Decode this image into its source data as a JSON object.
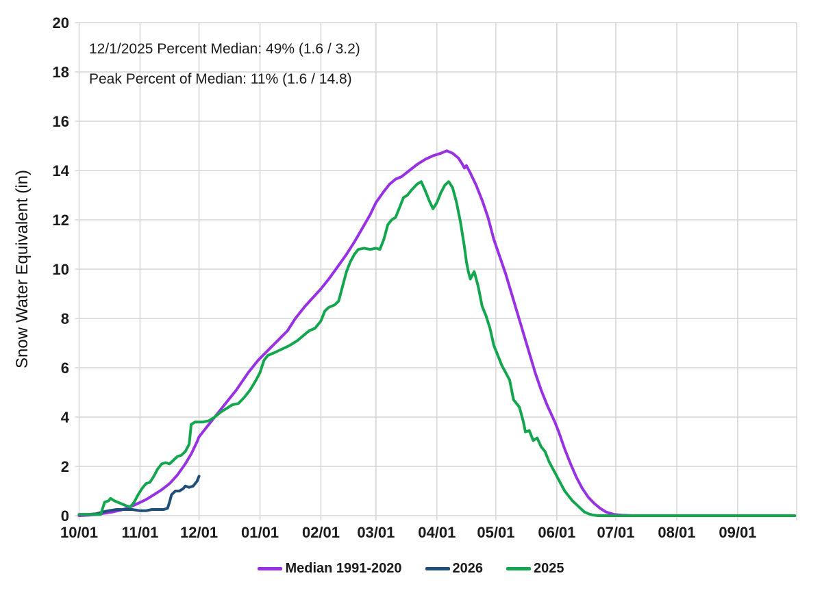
{
  "annotations": {
    "line1": "12/1/2025 Percent Median: 49% (1.6 / 3.2)",
    "line2": "Peak Percent of Median: 11% (1.6 / 14.8)"
  },
  "colors": {
    "median_line": "#9831E3",
    "line_2026": "#1F4E79",
    "line_2025": "#14A64E",
    "gridline": "#D5D5D5",
    "axis_text": "#1A1A1A",
    "background": "#FFFFFF"
  },
  "chart_data": {
    "type": "line",
    "title": "",
    "xlabel": "",
    "ylabel": "Snow Water Equivalent (in)",
    "ylim": [
      0,
      20
    ],
    "y_ticks": [
      0,
      2,
      4,
      6,
      8,
      10,
      12,
      14,
      16,
      18,
      20
    ],
    "x_ticks": [
      "10/01",
      "11/01",
      "12/01",
      "01/01",
      "02/01",
      "03/01",
      "04/01",
      "05/01",
      "06/01",
      "07/01",
      "08/01",
      "09/01"
    ],
    "grid": true,
    "legend_position": "bottom",
    "series": [
      {
        "name": "Median 1991-2020",
        "color": "#9831E3",
        "points": [
          [
            "10/01",
            0
          ],
          [
            "10/06",
            0.02
          ],
          [
            "10/10",
            0.05
          ],
          [
            "10/14",
            0.1
          ],
          [
            "10/18",
            0.15
          ],
          [
            "10/22",
            0.22
          ],
          [
            "10/26",
            0.32
          ],
          [
            "10/31",
            0.5
          ],
          [
            "11/04",
            0.65
          ],
          [
            "11/08",
            0.85
          ],
          [
            "11/12",
            1.05
          ],
          [
            "11/16",
            1.3
          ],
          [
            "11/20",
            1.65
          ],
          [
            "11/24",
            2.1
          ],
          [
            "11/27",
            2.5
          ],
          [
            "11/30",
            3.0
          ],
          [
            "12/01",
            3.2
          ],
          [
            "12/05",
            3.6
          ],
          [
            "12/10",
            4.1
          ],
          [
            "12/15",
            4.6
          ],
          [
            "12/20",
            5.1
          ],
          [
            "12/26",
            5.8
          ],
          [
            "12/31",
            6.3
          ],
          [
            "01/05",
            6.7
          ],
          [
            "01/10",
            7.1
          ],
          [
            "01/15",
            7.5
          ],
          [
            "01/19",
            8.0
          ],
          [
            "01/24",
            8.5
          ],
          [
            "01/28",
            8.85
          ],
          [
            "02/01",
            9.2
          ],
          [
            "02/05",
            9.6
          ],
          [
            "02/10",
            10.15
          ],
          [
            "02/14",
            10.6
          ],
          [
            "02/18",
            11.1
          ],
          [
            "02/22",
            11.65
          ],
          [
            "02/26",
            12.2
          ],
          [
            "03/01",
            12.7
          ],
          [
            "03/05",
            13.15
          ],
          [
            "03/08",
            13.45
          ],
          [
            "03/11",
            13.65
          ],
          [
            "03/14",
            13.75
          ],
          [
            "03/18",
            14.0
          ],
          [
            "03/22",
            14.25
          ],
          [
            "03/26",
            14.45
          ],
          [
            "03/30",
            14.6
          ],
          [
            "04/03",
            14.7
          ],
          [
            "04/06",
            14.8
          ],
          [
            "04/09",
            14.7
          ],
          [
            "04/12",
            14.5
          ],
          [
            "04/14",
            14.25
          ],
          [
            "04/15",
            14.1
          ],
          [
            "04/16",
            14.2
          ],
          [
            "04/18",
            13.9
          ],
          [
            "04/21",
            13.4
          ],
          [
            "04/24",
            12.8
          ],
          [
            "04/27",
            12.1
          ],
          [
            "04/30",
            11.2
          ],
          [
            "05/03",
            10.5
          ],
          [
            "05/06",
            9.8
          ],
          [
            "05/09",
            9.0
          ],
          [
            "05/12",
            8.2
          ],
          [
            "05/15",
            7.4
          ],
          [
            "05/18",
            6.6
          ],
          [
            "05/21",
            5.8
          ],
          [
            "05/24",
            5.1
          ],
          [
            "05/27",
            4.5
          ],
          [
            "05/31",
            3.8
          ],
          [
            "06/02",
            3.4
          ],
          [
            "06/05",
            2.7
          ],
          [
            "06/08",
            2.1
          ],
          [
            "06/11",
            1.55
          ],
          [
            "06/14",
            1.1
          ],
          [
            "06/17",
            0.75
          ],
          [
            "06/20",
            0.5
          ],
          [
            "06/23",
            0.3
          ],
          [
            "06/26",
            0.15
          ],
          [
            "06/30",
            0.05
          ],
          [
            "07/04",
            0.02
          ],
          [
            "07/10",
            0
          ],
          [
            "08/01",
            0
          ],
          [
            "09/01",
            0
          ],
          [
            "09/30",
            0
          ]
        ]
      },
      {
        "name": "2026",
        "color": "#1F4E79",
        "points": [
          [
            "10/01",
            0.05
          ],
          [
            "10/06",
            0.05
          ],
          [
            "10/10",
            0.08
          ],
          [
            "10/13",
            0.15
          ],
          [
            "10/16",
            0.2
          ],
          [
            "10/20",
            0.25
          ],
          [
            "10/24",
            0.25
          ],
          [
            "10/28",
            0.25
          ],
          [
            "11/01",
            0.2
          ],
          [
            "11/04",
            0.2
          ],
          [
            "11/07",
            0.25
          ],
          [
            "11/10",
            0.25
          ],
          [
            "11/13",
            0.25
          ],
          [
            "11/15",
            0.3
          ],
          [
            "11/16",
            0.55
          ],
          [
            "11/17",
            0.85
          ],
          [
            "11/19",
            1.0
          ],
          [
            "11/21",
            1.0
          ],
          [
            "11/23",
            1.1
          ],
          [
            "11/24",
            1.2
          ],
          [
            "11/26",
            1.15
          ],
          [
            "11/28",
            1.2
          ],
          [
            "11/30",
            1.4
          ],
          [
            "12/01",
            1.6
          ]
        ]
      },
      {
        "name": "2025",
        "color": "#14A64E",
        "points": [
          [
            "10/01",
            0.05
          ],
          [
            "10/08",
            0.05
          ],
          [
            "10/12",
            0.05
          ],
          [
            "10/13",
            0.3
          ],
          [
            "10/14",
            0.55
          ],
          [
            "10/16",
            0.6
          ],
          [
            "10/17",
            0.7
          ],
          [
            "10/19",
            0.6
          ],
          [
            "10/22",
            0.5
          ],
          [
            "10/25",
            0.4
          ],
          [
            "10/27",
            0.35
          ],
          [
            "10/29",
            0.55
          ],
          [
            "10/31",
            0.85
          ],
          [
            "11/02",
            1.1
          ],
          [
            "11/04",
            1.3
          ],
          [
            "11/06",
            1.35
          ],
          [
            "11/08",
            1.6
          ],
          [
            "11/10",
            1.9
          ],
          [
            "11/12",
            2.1
          ],
          [
            "11/14",
            2.15
          ],
          [
            "11/16",
            2.1
          ],
          [
            "11/18",
            2.25
          ],
          [
            "11/20",
            2.4
          ],
          [
            "11/22",
            2.45
          ],
          [
            "11/24",
            2.6
          ],
          [
            "11/26",
            2.9
          ],
          [
            "11/27",
            3.7
          ],
          [
            "11/29",
            3.8
          ],
          [
            "12/03",
            3.8
          ],
          [
            "12/06",
            3.85
          ],
          [
            "12/09",
            4.0
          ],
          [
            "12/12",
            4.2
          ],
          [
            "12/15",
            4.35
          ],
          [
            "12/18",
            4.5
          ],
          [
            "12/21",
            4.55
          ],
          [
            "12/24",
            4.8
          ],
          [
            "12/27",
            5.1
          ],
          [
            "12/30",
            5.5
          ],
          [
            "01/01",
            5.8
          ],
          [
            "01/03",
            6.3
          ],
          [
            "01/05",
            6.5
          ],
          [
            "01/08",
            6.6
          ],
          [
            "01/12",
            6.75
          ],
          [
            "01/16",
            6.9
          ],
          [
            "01/20",
            7.1
          ],
          [
            "01/23",
            7.3
          ],
          [
            "01/26",
            7.5
          ],
          [
            "01/29",
            7.6
          ],
          [
            "02/01",
            7.9
          ],
          [
            "02/03",
            8.3
          ],
          [
            "02/05",
            8.45
          ],
          [
            "02/08",
            8.55
          ],
          [
            "02/10",
            8.7
          ],
          [
            "02/12",
            9.3
          ],
          [
            "02/14",
            9.9
          ],
          [
            "02/16",
            10.3
          ],
          [
            "02/18",
            10.6
          ],
          [
            "02/20",
            10.8
          ],
          [
            "02/23",
            10.85
          ],
          [
            "02/26",
            10.8
          ],
          [
            "03/01",
            10.85
          ],
          [
            "03/03",
            10.8
          ],
          [
            "03/05",
            11.2
          ],
          [
            "03/07",
            11.8
          ],
          [
            "03/09",
            12.0
          ],
          [
            "03/11",
            12.1
          ],
          [
            "03/13",
            12.5
          ],
          [
            "03/15",
            12.9
          ],
          [
            "03/17",
            13.0
          ],
          [
            "03/19",
            13.2
          ],
          [
            "03/22",
            13.45
          ],
          [
            "03/24",
            13.55
          ],
          [
            "03/26",
            13.2
          ],
          [
            "03/28",
            12.8
          ],
          [
            "03/30",
            12.45
          ],
          [
            "04/01",
            12.7
          ],
          [
            "04/03",
            13.1
          ],
          [
            "04/05",
            13.4
          ],
          [
            "04/07",
            13.55
          ],
          [
            "04/09",
            13.3
          ],
          [
            "04/11",
            12.7
          ],
          [
            "04/13",
            11.9
          ],
          [
            "04/15",
            10.9
          ],
          [
            "04/16",
            10.3
          ],
          [
            "04/17",
            9.9
          ],
          [
            "04/18",
            9.6
          ],
          [
            "04/20",
            9.9
          ],
          [
            "04/22",
            9.3
          ],
          [
            "04/24",
            8.5
          ],
          [
            "04/26",
            8.1
          ],
          [
            "04/28",
            7.6
          ],
          [
            "04/30",
            6.9
          ],
          [
            "05/02",
            6.5
          ],
          [
            "05/04",
            6.1
          ],
          [
            "05/06",
            5.8
          ],
          [
            "05/08",
            5.5
          ],
          [
            "05/10",
            4.7
          ],
          [
            "05/12",
            4.5
          ],
          [
            "05/13",
            4.4
          ],
          [
            "05/15",
            3.8
          ],
          [
            "05/16",
            3.4
          ],
          [
            "05/18",
            3.45
          ],
          [
            "05/20",
            3.05
          ],
          [
            "05/22",
            3.15
          ],
          [
            "05/24",
            2.8
          ],
          [
            "05/26",
            2.6
          ],
          [
            "05/28",
            2.2
          ],
          [
            "05/30",
            1.9
          ],
          [
            "06/01",
            1.6
          ],
          [
            "06/03",
            1.3
          ],
          [
            "06/05",
            1.0
          ],
          [
            "06/07",
            0.8
          ],
          [
            "06/09",
            0.6
          ],
          [
            "06/11",
            0.45
          ],
          [
            "06/13",
            0.3
          ],
          [
            "06/15",
            0.15
          ],
          [
            "06/17",
            0.08
          ],
          [
            "06/19",
            0.03
          ],
          [
            "06/22",
            0
          ],
          [
            "07/01",
            0
          ],
          [
            "08/01",
            0
          ],
          [
            "09/01",
            0
          ],
          [
            "09/30",
            0
          ]
        ]
      }
    ]
  }
}
